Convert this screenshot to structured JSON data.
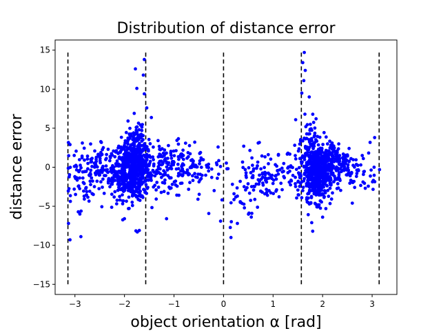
{
  "chart_data": {
    "type": "scatter",
    "title": "Distribution of distance error",
    "xlabel": "object orientation α [rad]",
    "ylabel": "distance error",
    "xlim": [
      -3.4,
      3.5
    ],
    "ylim": [
      -16.3,
      16.3
    ],
    "xticks": [
      -3,
      -2,
      -1,
      0,
      1,
      2,
      3
    ],
    "yticks": [
      -15,
      -10,
      -5,
      0,
      5,
      10,
      15
    ],
    "grid": false,
    "marker_color": "#0000ff",
    "line_color": "#000000",
    "vlines": {
      "x": [
        -3.1416,
        -1.5708,
        0,
        1.5708,
        3.1416
      ],
      "ymin": -15,
      "ymax": 15,
      "style": "dashed"
    },
    "clusters": [
      {
        "x": -1.85,
        "y": -0.3,
        "sx": 0.18,
        "sy": 1.9,
        "n": 520
      },
      {
        "x": -1.7,
        "y": 1.5,
        "sx": 0.12,
        "sy": 2.4,
        "n": 120
      },
      {
        "x": -2.4,
        "y": -0.5,
        "sx": 0.3,
        "sy": 1.6,
        "n": 140
      },
      {
        "x": -1.2,
        "y": 0.0,
        "sx": 0.35,
        "sy": 1.6,
        "n": 160
      },
      {
        "x": -0.6,
        "y": -0.2,
        "sx": 0.3,
        "sy": 1.3,
        "n": 70
      },
      {
        "x": -2.9,
        "y": -2.5,
        "sx": 0.2,
        "sy": 2.3,
        "n": 50
      },
      {
        "x": 1.9,
        "y": -0.8,
        "sx": 0.15,
        "sy": 1.8,
        "n": 520
      },
      {
        "x": 1.75,
        "y": 1.5,
        "sx": 0.12,
        "sy": 2.5,
        "n": 110
      },
      {
        "x": 2.3,
        "y": 0.6,
        "sx": 0.22,
        "sy": 1.4,
        "n": 150
      },
      {
        "x": 0.9,
        "y": -0.8,
        "sx": 0.35,
        "sy": 1.6,
        "n": 110
      },
      {
        "x": 0.4,
        "y": -3.0,
        "sx": 0.25,
        "sy": 2.2,
        "n": 35
      },
      {
        "x": 2.8,
        "y": -0.5,
        "sx": 0.2,
        "sy": 1.6,
        "n": 30
      }
    ],
    "outliers": [
      {
        "x": -1.6,
        "y": 13.8
      },
      {
        "x": -1.62,
        "y": 11.8
      },
      {
        "x": -1.78,
        "y": 12.6
      },
      {
        "x": -1.75,
        "y": 10.1
      },
      {
        "x": -1.6,
        "y": 9.4
      },
      {
        "x": -1.55,
        "y": 7.6
      },
      {
        "x": -1.74,
        "y": -8.3
      },
      {
        "x": -1.7,
        "y": -8.1
      },
      {
        "x": -2.0,
        "y": -6.6
      },
      {
        "x": -1.15,
        "y": -6.6
      },
      {
        "x": -3.1,
        "y": -9.3
      },
      {
        "x": -3.13,
        "y": -7.2
      },
      {
        "x": -2.88,
        "y": -8.9
      },
      {
        "x": -2.9,
        "y": -6.0
      },
      {
        "x": -2.85,
        "y": 3.1
      },
      {
        "x": -3.1,
        "y": 2.9
      },
      {
        "x": 1.63,
        "y": 14.7
      },
      {
        "x": 1.6,
        "y": 13.4
      },
      {
        "x": 1.65,
        "y": 12.4
      },
      {
        "x": 1.62,
        "y": 11.1
      },
      {
        "x": 1.58,
        "y": 9.5
      },
      {
        "x": 1.73,
        "y": 9.0
      },
      {
        "x": 1.8,
        "y": -8.2
      },
      {
        "x": 1.78,
        "y": -7.1
      },
      {
        "x": 2.0,
        "y": -6.4
      },
      {
        "x": 2.6,
        "y": -4.6
      },
      {
        "x": 3.05,
        "y": 3.8
      },
      {
        "x": 3.15,
        "y": -0.3
      },
      {
        "x": 0.15,
        "y": -9.0
      },
      {
        "x": 0.28,
        "y": -7.2
      },
      {
        "x": 0.07,
        "y": -0.2
      },
      {
        "x": 0.7,
        "y": 3.1
      },
      {
        "x": 1.3,
        "y": 1.8
      },
      {
        "x": 2.8,
        "y": 1.5
      }
    ]
  }
}
